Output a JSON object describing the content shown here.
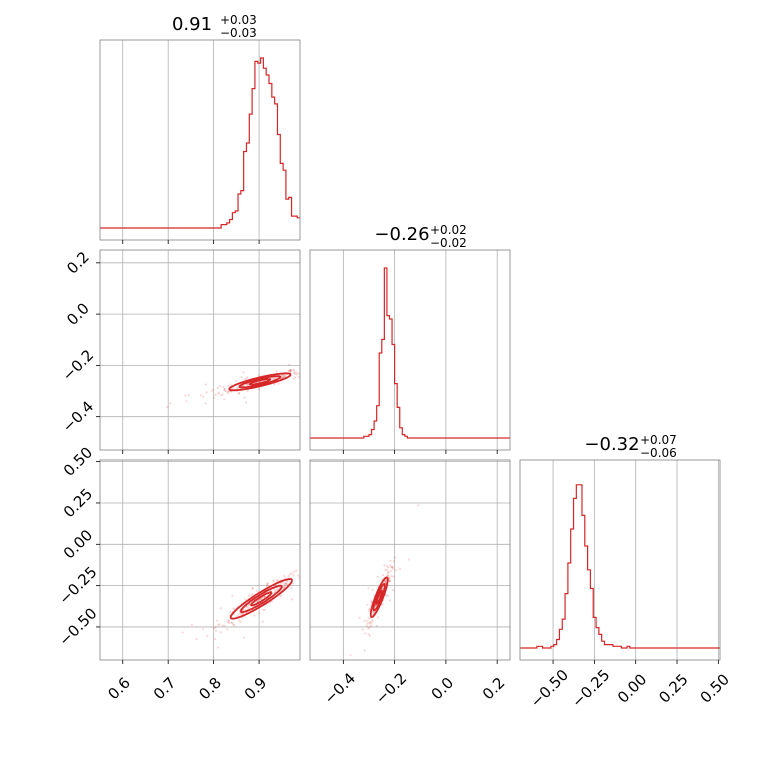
{
  "colors": {
    "series": "#d62728",
    "grid": "#b0b0b0",
    "frame": "#808080"
  },
  "chart_data": {
    "type": "corner",
    "parameters": [
      {
        "id": "p0",
        "title": {
          "main": "0.91",
          "plus": "+0.03",
          "minus": "−0.03"
        },
        "xlim": [
          0.55,
          0.99
        ],
        "ticks": [
          0.6,
          0.7,
          0.8,
          0.9
        ],
        "tick_labels": [
          "0.6",
          "0.7",
          "0.8",
          "0.9"
        ],
        "hist_edges": [
          0.55,
          0.99
        ],
        "hist_counts": [
          0,
          0,
          0,
          0,
          0,
          0,
          0,
          0,
          0,
          0,
          0,
          0,
          0,
          0,
          0,
          0,
          0,
          0,
          0,
          0,
          0,
          0,
          0,
          0,
          0,
          0,
          0,
          0,
          0,
          0,
          0,
          0,
          0,
          0,
          0,
          0,
          0,
          0,
          0,
          0,
          0,
          0,
          0,
          0.02,
          0.02,
          0.03,
          0.05,
          0.09,
          0.1,
          0.2,
          0.22,
          0.45,
          0.5,
          0.67,
          0.82,
          0.98,
          0.97,
          1.0,
          0.94,
          0.9,
          0.85,
          0.77,
          0.73,
          0.55,
          0.38,
          0.34,
          0.17,
          0.18,
          0.07,
          0.07,
          0.06
        ]
      },
      {
        "id": "p1",
        "title": {
          "main": "−0.26",
          "plus": "+0.02",
          "minus": "−0.02"
        },
        "xlim": [
          -0.53,
          0.25
        ],
        "ticks": [
          -0.4,
          -0.2,
          0.0,
          0.2
        ],
        "tick_labels": [
          "−0.4",
          "−0.2",
          "0.0",
          "0.2"
        ],
        "hist_edges": [
          -0.53,
          0.25
        ],
        "hist_counts": [
          0,
          0,
          0,
          0,
          0,
          0,
          0,
          0,
          0,
          0,
          0,
          0,
          0,
          0,
          0,
          0,
          0,
          0,
          0,
          0,
          0,
          0.01,
          0.01,
          0.02,
          0.05,
          0.1,
          0.19,
          0.5,
          0.58,
          1.0,
          0.72,
          0.7,
          0.55,
          0.32,
          0.18,
          0.06,
          0.02,
          0.01,
          0,
          0,
          0,
          0,
          0,
          0,
          0,
          0,
          0,
          0,
          0,
          0,
          0,
          0,
          0,
          0,
          0,
          0,
          0,
          0,
          0,
          0,
          0,
          0,
          0,
          0,
          0,
          0,
          0,
          0,
          0,
          0,
          0,
          0,
          0,
          0,
          0,
          0,
          0,
          0
        ]
      },
      {
        "id": "p2",
        "title": {
          "main": "−0.32",
          "plus": "+0.07",
          "minus": "−0.06"
        },
        "xlim": [
          -0.7,
          0.51
        ],
        "ticks": [
          -0.5,
          -0.25,
          0.0,
          0.25,
          0.5
        ],
        "tick_labels": [
          "−0.50",
          "−0.25",
          "0.00",
          "0.25",
          "0.50"
        ],
        "hist_edges": [
          -0.7,
          0.51
        ],
        "hist_counts": [
          0,
          0,
          0,
          0,
          0,
          0,
          0.01,
          0.01,
          0,
          0,
          0,
          0.01,
          0.02,
          0.05,
          0.11,
          0.17,
          0.32,
          0.5,
          0.7,
          0.88,
          0.96,
          0.96,
          0.78,
          0.6,
          0.46,
          0.35,
          0.18,
          0.12,
          0.08,
          0.04,
          0.02,
          0.02,
          0.02,
          0.01,
          0.01,
          0.01,
          0,
          0,
          0.01,
          0,
          0,
          0,
          0,
          0,
          0,
          0,
          0,
          0,
          0,
          0,
          0,
          0,
          0,
          0,
          0,
          0,
          0,
          0,
          0,
          0,
          0,
          0,
          0,
          0,
          0,
          0,
          0,
          0,
          0,
          0,
          0
        ]
      }
    ],
    "y_axes": [
      {
        "row": 1,
        "ylim": [
          -0.53,
          0.25
        ],
        "ticks": [
          -0.4,
          -0.2,
          0.0,
          0.2
        ],
        "tick_labels": [
          "−0.4",
          "−0.2",
          "0.0",
          "0.2"
        ]
      },
      {
        "row": 2,
        "ylim": [
          -0.7,
          0.51
        ],
        "ticks": [
          -0.5,
          -0.25,
          0.0,
          0.25,
          0.5
        ],
        "tick_labels": [
          "−0.50",
          "−0.25",
          "0.00",
          "0.25",
          "0.50"
        ]
      }
    ],
    "contours": [
      {
        "x": 1,
        "y": 0,
        "center": [
          0.902,
          -0.264
        ],
        "sx": 0.045,
        "sy": 0.022,
        "rho": 0.85
      },
      {
        "x": 2,
        "y": 0,
        "center": [
          0.905,
          -0.33
        ],
        "sx": 0.045,
        "sy": 0.08,
        "rho": 0.93
      },
      {
        "x": 2,
        "y": 1,
        "center": [
          -0.26,
          -0.32
        ],
        "sx": 0.022,
        "sy": 0.08,
        "rho": 0.88
      }
    ],
    "grid": true
  }
}
